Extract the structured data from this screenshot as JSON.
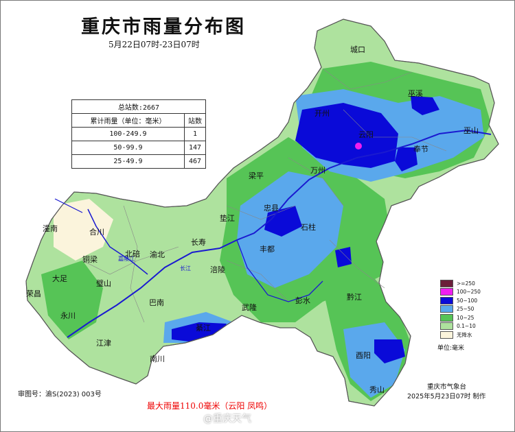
{
  "header": {
    "title": "重庆市雨量分布图",
    "period": "5月22日07时-23日07时"
  },
  "stats": {
    "total": "总站数:2667",
    "col1": "累计雨量（单位：毫米）",
    "col2": "站数",
    "rows": [
      {
        "range": "100-249.9",
        "count": "1"
      },
      {
        "range": "50-99.9",
        "count": "147"
      },
      {
        "range": "25-49.9",
        "count": "467"
      }
    ]
  },
  "legend": [
    {
      "label": ">=250",
      "color": "#6b1f3a"
    },
    {
      "label": "100~250",
      "color": "#f01ef0"
    },
    {
      "label": "50~100",
      "color": "#0a0ad8"
    },
    {
      "label": "25~50",
      "color": "#5aa8ec"
    },
    {
      "label": "10~25",
      "color": "#56c456"
    },
    {
      "label": "0.1~10",
      "color": "#aee29e"
    },
    {
      "label": "无降水",
      "color": "#fbf4dc"
    }
  ],
  "unit": "单位:毫米",
  "cities": [
    "城口",
    "巫溪",
    "开州",
    "云阳",
    "巫山",
    "奉节",
    "万州",
    "梁平",
    "忠县",
    "垫江",
    "石柱",
    "长寿",
    "丰都",
    "涪陵",
    "潼南",
    "合川",
    "铜梁",
    "北碚",
    "渝北",
    "大足",
    "璧山",
    "荣昌",
    "永川",
    "巴南",
    "武隆",
    "彭水",
    "黔江",
    "南川",
    "江津",
    "綦江",
    "酉阳",
    "秀山"
  ],
  "rivers": [
    "长江",
    "嘉陵江"
  ],
  "footer": {
    "approval": "审图号：渝S(2023) 003号",
    "max_rain": "最大雨量110.0毫米（云阳 凤鸣）",
    "org": "重庆市气象台",
    "issue": "2025年5月23日07时 制作",
    "watermark": "@重庆天气"
  }
}
